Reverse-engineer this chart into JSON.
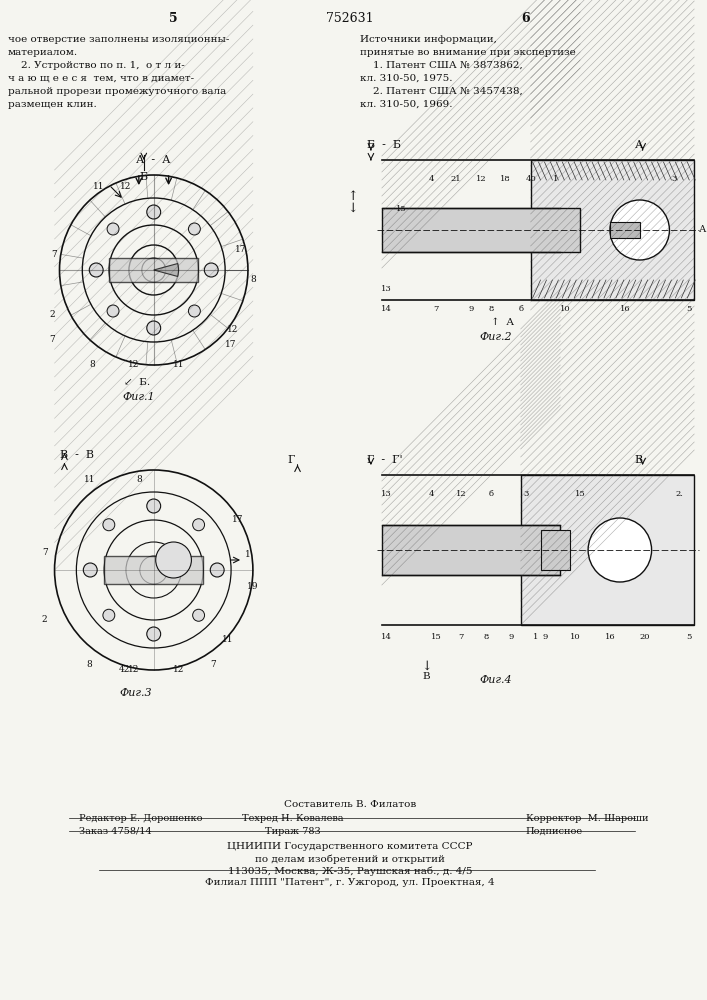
{
  "page_width": 7.07,
  "page_height": 10.0,
  "bg_color": "#f5f5f0",
  "header": {
    "left_num": "5",
    "center_num": "752631",
    "right_num": "6"
  },
  "left_text": [
    "чое отверстие заполнены изоляционны-",
    "материалом.",
    "    2. Устройство по п. 1,  о т л и-",
    "ч а ю щ е е с я  тем, что в диамет-",
    "ральной прорези промежуточного вала",
    "размещен клин."
  ],
  "right_text": [
    "Источники информации,",
    "принятые во внимание при экспертизе",
    "    1. Патент США № 3873862,",
    "кл. 310-50, 1975.",
    "    2. Патент США № 3457438,",
    "кл. 310-50, 1969."
  ],
  "fig1_label": "А - А",
  "fig1_caption": "Фиг.1",
  "fig2_caption": "Фиг.2",
  "fig3_label": "В - В",
  "fig3_caption": "Фиг.3",
  "fig4_caption": "Фиг.4",
  "bb_label": "Б - Б",
  "rr_label": "Г - Г",
  "footer": {
    "line1": "Составитель В. Филатов",
    "line2_left": "Редактор Е. Дорошенко",
    "line2_mid": "Техред Н. Ковалева",
    "line2_right": "Корректор  М. Шароши",
    "line3_left": "Заказ 4758/14",
    "line3_mid": "Тираж 783",
    "line3_right": "Подписное",
    "line4": "ЦНИИПИ Государственного комитета СССР",
    "line5": "по делам изобретений и открытий",
    "line6": "113035, Москва, Ж-35, Раушская наб., д. 4/5",
    "line7": "Филиал ППП \"Патент\", г. Ужгород, ул. Проектная, 4"
  },
  "hatch_color": "#333333",
  "line_color": "#111111",
  "text_color": "#111111"
}
